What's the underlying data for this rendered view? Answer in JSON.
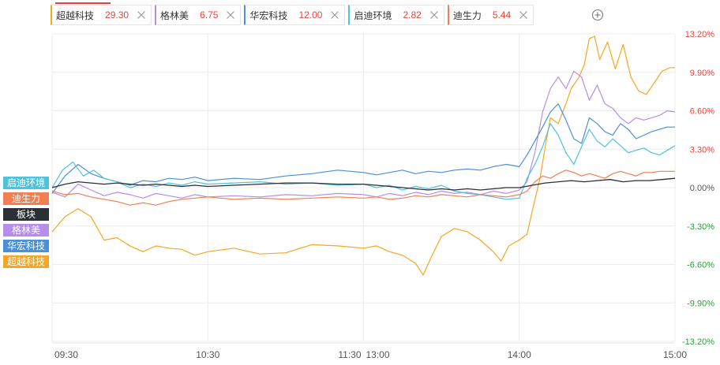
{
  "tabs": [
    {
      "name": "超越科技",
      "value": "29.30",
      "color": "#f5a623",
      "active": true
    },
    {
      "name": "格林美",
      "value": "6.75",
      "color": "#b48ee8"
    },
    {
      "name": "华宏科技",
      "value": "12.00",
      "color": "#4a90d9"
    },
    {
      "name": "启迪环境",
      "value": "2.82",
      "color": "#4fc3dc"
    },
    {
      "name": "迪生力",
      "value": "5.44",
      "color": "#f07f52"
    }
  ],
  "legend": [
    {
      "label": "启迪环境",
      "color": "#4fc3dc"
    },
    {
      "label": "迪生力",
      "color": "#f07f52"
    },
    {
      "label": "板块",
      "color": "#2b2f36"
    },
    {
      "label": "格林美",
      "color": "#b48ee8"
    },
    {
      "label": "华宏科技",
      "color": "#4a90d9"
    },
    {
      "label": "超越科技",
      "color": "#f5a623"
    }
  ],
  "chart_data": {
    "type": "line",
    "y_ticks": [
      "13.20%",
      "9.90%",
      "6.60%",
      "3.30%",
      "0.00%",
      "-3.30%",
      "-6.60%",
      "-9.90%",
      "-13.20%"
    ],
    "y_tick_values": [
      13.2,
      9.9,
      6.6,
      3.3,
      0,
      -3.3,
      -6.6,
      -9.9,
      -13.2
    ],
    "ylim": [
      -13.2,
      13.2
    ],
    "x_ticks": [
      {
        "label": "09:30",
        "t": 0
      },
      {
        "label": "10:30",
        "t": 60
      },
      {
        "label": "11:30",
        "t": 120
      },
      {
        "label": "13:00",
        "t": 120
      },
      {
        "label": "14:00",
        "t": 180
      },
      {
        "label": "15:00",
        "t": 240
      }
    ],
    "x_domain_minutes": [
      0,
      240
    ],
    "grid": true,
    "series": [
      {
        "name": "超越科技",
        "color": "#f5a623",
        "points": [
          [
            0,
            -3.8
          ],
          [
            5,
            -2.5
          ],
          [
            10,
            -1.8
          ],
          [
            15,
            -2.5
          ],
          [
            20,
            -4.5
          ],
          [
            25,
            -4.3
          ],
          [
            30,
            -5.0
          ],
          [
            35,
            -5.5
          ],
          [
            40,
            -5.0
          ],
          [
            45,
            -5.2
          ],
          [
            50,
            -5.3
          ],
          [
            55,
            -5.8
          ],
          [
            60,
            -5.5
          ],
          [
            70,
            -5.2
          ],
          [
            80,
            -5.7
          ],
          [
            90,
            -5.6
          ],
          [
            100,
            -4.9
          ],
          [
            110,
            -5.0
          ],
          [
            120,
            -5.2
          ],
          [
            125,
            -5.0
          ],
          [
            130,
            -5.5
          ],
          [
            135,
            -5.8
          ],
          [
            140,
            -6.5
          ],
          [
            143,
            -7.5
          ],
          [
            146,
            -6.0
          ],
          [
            150,
            -4.2
          ],
          [
            155,
            -3.5
          ],
          [
            160,
            -3.8
          ],
          [
            165,
            -4.5
          ],
          [
            170,
            -5.5
          ],
          [
            173,
            -6.3
          ],
          [
            176,
            -5.0
          ],
          [
            180,
            -4.5
          ],
          [
            183,
            -4.0
          ],
          [
            185,
            -2.0
          ],
          [
            188,
            0.8
          ],
          [
            190,
            3.5
          ],
          [
            192,
            6.0
          ],
          [
            195,
            5.5
          ],
          [
            198,
            7.2
          ],
          [
            200,
            8.5
          ],
          [
            203,
            9.5
          ],
          [
            205,
            10.5
          ],
          [
            207,
            12.8
          ],
          [
            209,
            13.0
          ],
          [
            211,
            11.0
          ],
          [
            214,
            12.5
          ],
          [
            217,
            10.2
          ],
          [
            220,
            12.3
          ],
          [
            223,
            9.5
          ],
          [
            226,
            8.3
          ],
          [
            229,
            8.0
          ],
          [
            232,
            9.0
          ],
          [
            235,
            10.0
          ],
          [
            238,
            10.3
          ],
          [
            240,
            10.3
          ]
        ]
      },
      {
        "name": "格林美",
        "color": "#b48ee8",
        "points": [
          [
            0,
            -0.4
          ],
          [
            5,
            -0.8
          ],
          [
            10,
            0.3
          ],
          [
            15,
            -0.2
          ],
          [
            20,
            -0.7
          ],
          [
            25,
            -0.4
          ],
          [
            30,
            -0.6
          ],
          [
            35,
            -0.9
          ],
          [
            40,
            -0.5
          ],
          [
            45,
            -0.7
          ],
          [
            50,
            -0.9
          ],
          [
            55,
            -0.6
          ],
          [
            60,
            -0.8
          ],
          [
            70,
            -0.7
          ],
          [
            80,
            -0.8
          ],
          [
            90,
            -0.6
          ],
          [
            100,
            -0.7
          ],
          [
            110,
            -0.5
          ],
          [
            120,
            -0.6
          ],
          [
            125,
            -0.8
          ],
          [
            130,
            -0.5
          ],
          [
            135,
            -0.7
          ],
          [
            140,
            -0.4
          ],
          [
            145,
            -0.6
          ],
          [
            150,
            -0.3
          ],
          [
            155,
            -0.5
          ],
          [
            160,
            -0.4
          ],
          [
            165,
            -0.6
          ],
          [
            170,
            -0.3
          ],
          [
            175,
            -0.5
          ],
          [
            180,
            -0.2
          ],
          [
            183,
            0.5
          ],
          [
            186,
            3.0
          ],
          [
            189,
            6.5
          ],
          [
            192,
            8.5
          ],
          [
            195,
            9.5
          ],
          [
            198,
            8.5
          ],
          [
            201,
            10.0
          ],
          [
            204,
            9.5
          ],
          [
            207,
            7.5
          ],
          [
            210,
            8.8
          ],
          [
            213,
            7.2
          ],
          [
            216,
            6.8
          ],
          [
            219,
            6.0
          ],
          [
            222,
            5.5
          ],
          [
            225,
            6.0
          ],
          [
            228,
            5.8
          ],
          [
            231,
            6.0
          ],
          [
            234,
            6.2
          ],
          [
            237,
            6.6
          ],
          [
            240,
            6.5
          ]
        ]
      },
      {
        "name": "华宏科技",
        "color": "#4a90d9",
        "points": [
          [
            0,
            -0.5
          ],
          [
            5,
            1.0
          ],
          [
            10,
            2.0
          ],
          [
            15,
            1.2
          ],
          [
            20,
            0.8
          ],
          [
            25,
            0.5
          ],
          [
            30,
            0.2
          ],
          [
            35,
            0.6
          ],
          [
            40,
            0.5
          ],
          [
            45,
            0.8
          ],
          [
            50,
            0.7
          ],
          [
            55,
            0.9
          ],
          [
            60,
            0.6
          ],
          [
            70,
            0.8
          ],
          [
            80,
            0.7
          ],
          [
            90,
            1.0
          ],
          [
            100,
            1.2
          ],
          [
            110,
            1.5
          ],
          [
            120,
            1.3
          ],
          [
            125,
            1.1
          ],
          [
            130,
            1.3
          ],
          [
            135,
            1.5
          ],
          [
            140,
            1.2
          ],
          [
            145,
            1.4
          ],
          [
            150,
            1.3
          ],
          [
            155,
            1.5
          ],
          [
            160,
            1.6
          ],
          [
            165,
            1.5
          ],
          [
            170,
            1.8
          ],
          [
            175,
            2.0
          ],
          [
            180,
            1.8
          ],
          [
            183,
            2.8
          ],
          [
            186,
            4.0
          ],
          [
            189,
            5.2
          ],
          [
            192,
            6.5
          ],
          [
            195,
            7.2
          ],
          [
            198,
            5.8
          ],
          [
            201,
            4.2
          ],
          [
            204,
            3.8
          ],
          [
            207,
            6.0
          ],
          [
            210,
            5.5
          ],
          [
            213,
            4.8
          ],
          [
            216,
            4.5
          ],
          [
            219,
            5.5
          ],
          [
            222,
            5.0
          ],
          [
            225,
            4.2
          ],
          [
            228,
            4.5
          ],
          [
            231,
            4.8
          ],
          [
            234,
            5.0
          ],
          [
            237,
            5.2
          ],
          [
            240,
            5.2
          ]
        ]
      },
      {
        "name": "启迪环境",
        "color": "#4fc3dc",
        "points": [
          [
            0,
            0.0
          ],
          [
            4,
            1.5
          ],
          [
            8,
            2.2
          ],
          [
            12,
            1.0
          ],
          [
            16,
            1.5
          ],
          [
            20,
            0.8
          ],
          [
            25,
            0.5
          ],
          [
            30,
            0.0
          ],
          [
            35,
            0.3
          ],
          [
            40,
            0.1
          ],
          [
            45,
            0.4
          ],
          [
            50,
            0.2
          ],
          [
            55,
            0.5
          ],
          [
            60,
            0.3
          ],
          [
            70,
            0.4
          ],
          [
            80,
            0.5
          ],
          [
            90,
            0.3
          ],
          [
            100,
            0.4
          ],
          [
            110,
            0.2
          ],
          [
            120,
            0.3
          ],
          [
            125,
            0.0
          ],
          [
            130,
            0.2
          ],
          [
            135,
            -0.2
          ],
          [
            140,
            0.1
          ],
          [
            145,
            -0.1
          ],
          [
            150,
            0.2
          ],
          [
            155,
            -0.3
          ],
          [
            160,
            -0.5
          ],
          [
            165,
            -0.6
          ],
          [
            170,
            -0.8
          ],
          [
            175,
            -1.0
          ],
          [
            180,
            -0.9
          ],
          [
            183,
            0.8
          ],
          [
            186,
            2.0
          ],
          [
            189,
            3.5
          ],
          [
            192,
            5.5
          ],
          [
            195,
            4.5
          ],
          [
            198,
            3.0
          ],
          [
            201,
            2.0
          ],
          [
            204,
            3.5
          ],
          [
            207,
            5.0
          ],
          [
            210,
            4.0
          ],
          [
            213,
            3.5
          ],
          [
            216,
            4.2
          ],
          [
            219,
            3.6
          ],
          [
            222,
            3.0
          ],
          [
            225,
            3.2
          ],
          [
            228,
            3.4
          ],
          [
            231,
            3.0
          ],
          [
            234,
            2.8
          ],
          [
            237,
            3.2
          ],
          [
            240,
            3.6
          ]
        ]
      },
      {
        "name": "迪生力",
        "color": "#f07f52",
        "points": [
          [
            0,
            -0.3
          ],
          [
            5,
            -0.6
          ],
          [
            10,
            -0.5
          ],
          [
            15,
            -0.8
          ],
          [
            20,
            -1.0
          ],
          [
            25,
            -1.2
          ],
          [
            30,
            -1.5
          ],
          [
            35,
            -1.3
          ],
          [
            40,
            -1.5
          ],
          [
            45,
            -1.2
          ],
          [
            50,
            -1.0
          ],
          [
            55,
            -0.9
          ],
          [
            60,
            -0.8
          ],
          [
            70,
            -1.0
          ],
          [
            80,
            -0.9
          ],
          [
            90,
            -1.0
          ],
          [
            100,
            -0.9
          ],
          [
            110,
            -0.8
          ],
          [
            120,
            -0.9
          ],
          [
            125,
            -0.8
          ],
          [
            130,
            -1.0
          ],
          [
            135,
            -0.9
          ],
          [
            140,
            -0.7
          ],
          [
            145,
            -0.8
          ],
          [
            150,
            -0.6
          ],
          [
            155,
            -0.7
          ],
          [
            160,
            -0.8
          ],
          [
            165,
            -0.6
          ],
          [
            170,
            -0.7
          ],
          [
            175,
            -0.8
          ],
          [
            180,
            -0.6
          ],
          [
            183,
            -0.3
          ],
          [
            186,
            0.5
          ],
          [
            189,
            1.0
          ],
          [
            192,
            0.8
          ],
          [
            195,
            1.2
          ],
          [
            198,
            1.5
          ],
          [
            201,
            1.3
          ],
          [
            204,
            1.0
          ],
          [
            207,
            1.2
          ],
          [
            210,
            1.0
          ],
          [
            213,
            0.8
          ],
          [
            216,
            1.2
          ],
          [
            219,
            1.4
          ],
          [
            222,
            1.2
          ],
          [
            225,
            1.0
          ],
          [
            228,
            1.3
          ],
          [
            231,
            1.3
          ],
          [
            234,
            1.4
          ],
          [
            237,
            1.4
          ],
          [
            240,
            1.4
          ]
        ]
      },
      {
        "name": "板块",
        "color": "#2b2f36",
        "points": [
          [
            0,
            0.0
          ],
          [
            5,
            0.3
          ],
          [
            10,
            0.5
          ],
          [
            15,
            0.4
          ],
          [
            20,
            0.3
          ],
          [
            25,
            0.4
          ],
          [
            30,
            0.3
          ],
          [
            35,
            0.2
          ],
          [
            40,
            0.3
          ],
          [
            45,
            0.2
          ],
          [
            50,
            0.1
          ],
          [
            55,
            0.2
          ],
          [
            60,
            0.1
          ],
          [
            70,
            0.2
          ],
          [
            80,
            0.3
          ],
          [
            90,
            0.4
          ],
          [
            100,
            0.4
          ],
          [
            110,
            0.3
          ],
          [
            120,
            0.3
          ],
          [
            125,
            0.2
          ],
          [
            130,
            0.1
          ],
          [
            135,
            0.0
          ],
          [
            140,
            -0.1
          ],
          [
            145,
            -0.2
          ],
          [
            150,
            -0.1
          ],
          [
            155,
            -0.2
          ],
          [
            160,
            -0.1
          ],
          [
            165,
            -0.2
          ],
          [
            170,
            -0.1
          ],
          [
            175,
            0.0
          ],
          [
            180,
            0.0
          ],
          [
            185,
            0.2
          ],
          [
            190,
            0.4
          ],
          [
            195,
            0.5
          ],
          [
            200,
            0.6
          ],
          [
            205,
            0.5
          ],
          [
            210,
            0.6
          ],
          [
            215,
            0.7
          ],
          [
            220,
            0.5
          ],
          [
            225,
            0.6
          ],
          [
            230,
            0.6
          ],
          [
            235,
            0.7
          ],
          [
            240,
            0.8
          ]
        ]
      }
    ]
  }
}
